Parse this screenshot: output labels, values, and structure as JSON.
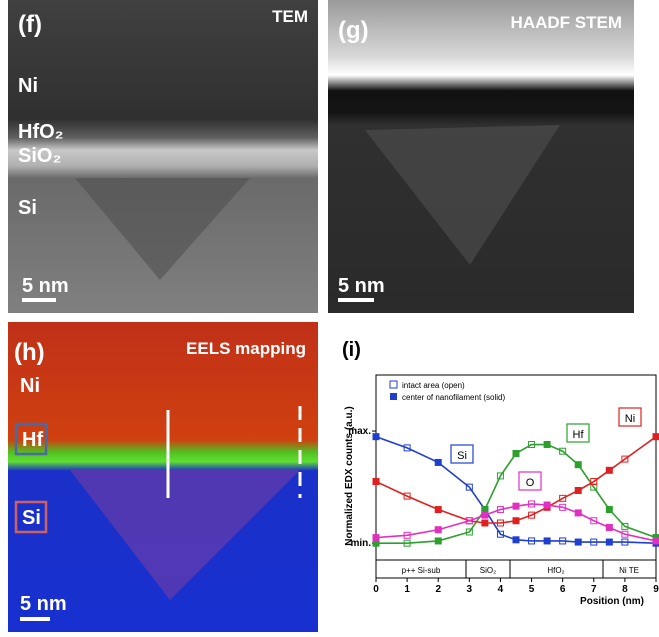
{
  "panels": {
    "f": {
      "label": "(f)",
      "title": "TEM",
      "layers": [
        "Ni",
        "HfO₂",
        "SiO₂",
        "Si"
      ],
      "scale": "5 nm"
    },
    "g": {
      "label": "(g)",
      "title": "HAADF STEM",
      "scale": "5 nm"
    },
    "h": {
      "label": "(h)",
      "title": "EELS mapping",
      "layers": [
        "Ni",
        "Hf",
        "Si"
      ],
      "scale": "5 nm"
    }
  },
  "chart_data": {
    "type": "line",
    "panel_label": "(i)",
    "x_label": "Position (nm)",
    "y_label": "Normalized EDX counts (a.u.)",
    "legend_notes": [
      "intact area (open)",
      "center of nanofilament (solid)"
    ],
    "layer_labels": [
      "p++ Si-sub",
      "SiO₂",
      "HfO₂",
      "Ni TE"
    ],
    "x": [
      0,
      1,
      2,
      3,
      3.5,
      4,
      4.5,
      5,
      5.5,
      6,
      6.5,
      7,
      7.5,
      8,
      9
    ],
    "series": [
      {
        "name": "Si",
        "color": "#1f3fd0",
        "values": [
          0.95,
          0.85,
          0.72,
          0.5,
          0.3,
          0.08,
          0.03,
          0.02,
          0.02,
          0.02,
          0.01,
          0.01,
          0.01,
          0.01,
          0
        ]
      },
      {
        "name": "Hf",
        "color": "#2ca02c",
        "values": [
          0,
          0,
          0.02,
          0.1,
          0.3,
          0.6,
          0.8,
          0.88,
          0.88,
          0.82,
          0.7,
          0.5,
          0.3,
          0.15,
          0.05
        ]
      },
      {
        "name": "Ni",
        "color": "#e02020",
        "values": [
          0.55,
          0.42,
          0.3,
          0.2,
          0.18,
          0.18,
          0.2,
          0.25,
          0.32,
          0.4,
          0.47,
          0.55,
          0.65,
          0.75,
          0.95
        ]
      },
      {
        "name": "O",
        "color": "#e030c0",
        "values": [
          0.05,
          0.07,
          0.12,
          0.2,
          0.25,
          0.3,
          0.33,
          0.35,
          0.34,
          0.32,
          0.27,
          0.2,
          0.14,
          0.08,
          0.02
        ]
      }
    ],
    "xlim": [
      0,
      9
    ],
    "xticks": [
      0,
      1,
      2,
      3,
      4,
      5,
      6,
      7,
      8,
      9
    ],
    "ylim": [
      -0.15,
      1.5
    ],
    "yticks": [
      {
        "value": 0,
        "label": "min."
      },
      {
        "value": 1,
        "label": "max."
      }
    ]
  }
}
